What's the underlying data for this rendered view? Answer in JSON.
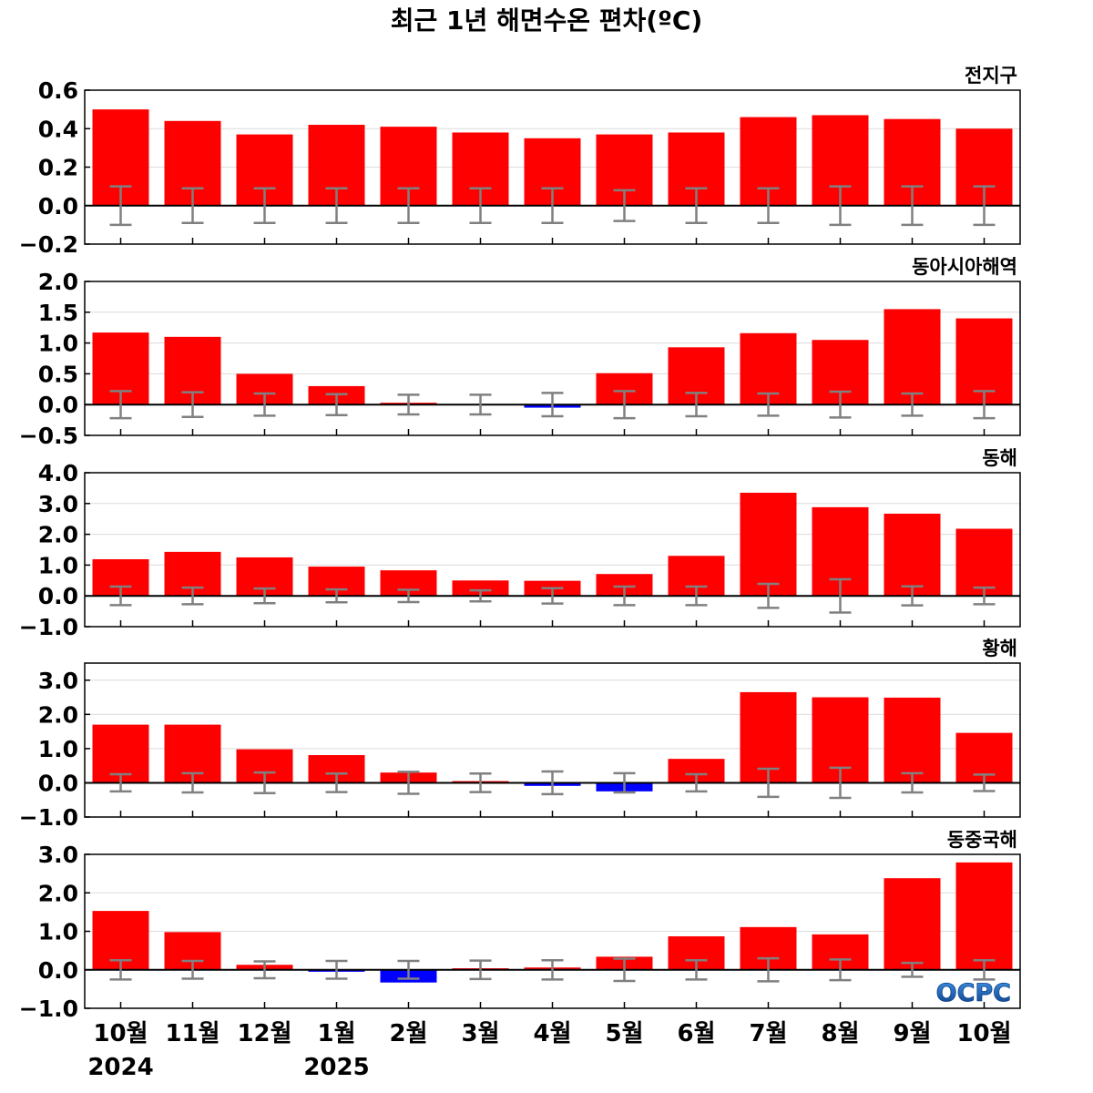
{
  "colors": {
    "positive_bar": "#ff0000",
    "negative_bar": "#0000ff",
    "error_bar": "#808080",
    "zero_line": "#000000",
    "gridline": "#dcdcdc"
  },
  "logo": {
    "text": "OCPC"
  },
  "chart_data": {
    "type": "bar",
    "title": "최근 1년 해면수온 편차(ºC)",
    "categories": [
      "10월",
      "11월",
      "12월",
      "1월",
      "2월",
      "3월",
      "4월",
      "5월",
      "6월",
      "7월",
      "8월",
      "9월",
      "10월"
    ],
    "year_labels": [
      {
        "label": "2024",
        "category_index": 0
      },
      {
        "label": "2025",
        "category_index": 3
      }
    ],
    "error_bar_center": 0,
    "grid": true,
    "panels": [
      {
        "title": "전지구",
        "ylim": [
          -0.2,
          0.6
        ],
        "yticks": [
          0.6,
          0.4,
          0.2,
          0.0,
          -0.2
        ],
        "ytick_labels": [
          "0.6",
          "0.4",
          "0.2",
          "0.0",
          "−0.2"
        ],
        "values": [
          0.5,
          0.44,
          0.37,
          0.42,
          0.41,
          0.38,
          0.35,
          0.37,
          0.38,
          0.46,
          0.47,
          0.45,
          0.4
        ],
        "errors": [
          0.1,
          0.09,
          0.09,
          0.09,
          0.09,
          0.09,
          0.09,
          0.08,
          0.09,
          0.09,
          0.1,
          0.1,
          0.1
        ]
      },
      {
        "title": "동아시아해역",
        "ylim": [
          -0.5,
          2.0
        ],
        "yticks": [
          2.0,
          1.5,
          1.0,
          0.5,
          0.0,
          -0.5
        ],
        "ytick_labels": [
          "2.0",
          "1.5",
          "1.0",
          "0.5",
          "0.0",
          "−0.5"
        ],
        "values": [
          1.17,
          1.1,
          0.5,
          0.3,
          0.03,
          0.01,
          -0.05,
          0.51,
          0.93,
          1.16,
          1.05,
          1.55,
          1.4
        ],
        "errors": [
          0.22,
          0.2,
          0.18,
          0.17,
          0.16,
          0.16,
          0.19,
          0.22,
          0.19,
          0.18,
          0.21,
          0.18,
          0.22
        ]
      },
      {
        "title": "동해",
        "ylim": [
          -1.0,
          4.0
        ],
        "yticks": [
          4.0,
          3.0,
          2.0,
          1.0,
          0.0,
          -1.0
        ],
        "ytick_labels": [
          "4.0",
          "3.0",
          "2.0",
          "1.0",
          "0.0",
          "−1.0"
        ],
        "values": [
          1.19,
          1.43,
          1.25,
          0.95,
          0.83,
          0.5,
          0.49,
          0.71,
          1.3,
          3.35,
          2.88,
          2.67,
          2.18
        ],
        "errors": [
          0.3,
          0.27,
          0.24,
          0.21,
          0.2,
          0.18,
          0.25,
          0.3,
          0.3,
          0.39,
          0.54,
          0.31,
          0.27
        ]
      },
      {
        "title": "황해",
        "ylim": [
          -1.0,
          3.5
        ],
        "yticks": [
          3.0,
          2.0,
          1.0,
          0.0,
          -1.0
        ],
        "ytick_labels": [
          "3.0",
          "2.0",
          "1.0",
          "0.0",
          "−1.0"
        ],
        "values": [
          1.7,
          1.7,
          0.98,
          0.81,
          0.3,
          0.05,
          -0.09,
          -0.25,
          0.7,
          2.65,
          2.5,
          2.49,
          1.46
        ],
        "errors": [
          0.25,
          0.28,
          0.3,
          0.27,
          0.32,
          0.27,
          0.33,
          0.28,
          0.25,
          0.41,
          0.44,
          0.28,
          0.24
        ]
      },
      {
        "title": "동중국해",
        "ylim": [
          -1.0,
          3.0
        ],
        "yticks": [
          3.0,
          2.0,
          1.0,
          0.0,
          -1.0
        ],
        "ytick_labels": [
          "3.0",
          "2.0",
          "1.0",
          "0.0",
          "−1.0"
        ],
        "values": [
          1.53,
          0.98,
          0.13,
          -0.05,
          -0.33,
          0.04,
          0.06,
          0.34,
          0.87,
          1.11,
          0.92,
          2.38,
          2.79
        ],
        "errors": [
          0.25,
          0.23,
          0.22,
          0.23,
          0.23,
          0.24,
          0.25,
          0.29,
          0.25,
          0.3,
          0.27,
          0.18,
          0.25
        ]
      }
    ]
  }
}
